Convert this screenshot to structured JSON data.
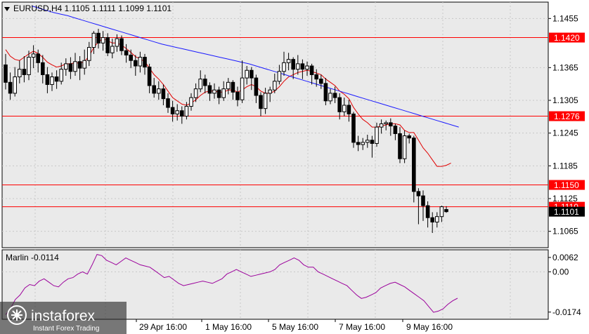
{
  "header": {
    "symbol_info": "EURUSD,H4  1.1105 1.1111 1.1099 1.1101"
  },
  "indicator": {
    "name": "Marlin -0.0114"
  },
  "price_axis": {
    "ticks": [
      "1.1455",
      "1.1365",
      "1.1305",
      "1.1245",
      "1.1185",
      "1.1125",
      "1.1065"
    ]
  },
  "price_tags": [
    {
      "text": "1.1420",
      "value": 1.142,
      "color": "#ff0000"
    },
    {
      "text": "1.1276",
      "value": 1.1276,
      "color": "#ff0000"
    },
    {
      "text": "1.1150",
      "value": 1.115,
      "color": "#ff0000"
    },
    {
      "text": "1.1110",
      "value": 1.111,
      "color": "#ff0000"
    },
    {
      "text": "1.1101",
      "value": 1.1101,
      "color": "#000000"
    }
  ],
  "indicator_axis": {
    "ticks": [
      "0.0062",
      "0.00",
      "-0.0174"
    ]
  },
  "time_axis": {
    "labels": [
      "29 Apr 16:00",
      "1 May 16:00",
      "5 May 16:00",
      "7 May 16:00",
      "9 May 16:00"
    ]
  },
  "watermark": {
    "brand": "instaforex",
    "tagline": "Instant Forex Trading"
  },
  "colors": {
    "background": "#ffffff",
    "plot_bg": "#eaeaea",
    "grid": "#c8c8c8",
    "resistance": "#ff0000",
    "fast_ma": "#e00000",
    "slow_ma": "#1a1aff",
    "oscillator": "#9b009b",
    "candle": "#000000"
  },
  "chart_data": {
    "type": "candlestick",
    "symbol": "EURUSD",
    "timeframe": "H4",
    "ohlc_last": {
      "open": 1.1105,
      "high": 1.1111,
      "low": 1.1099,
      "close": 1.1101
    },
    "ylim": [
      1.1035,
      1.1485
    ],
    "horizontal_levels": [
      1.142,
      1.1276,
      1.115,
      1.111
    ],
    "candles": [
      [
        1.137,
        1.1338,
        1.139,
        1.1325
      ],
      [
        1.1338,
        1.1318,
        1.1356,
        1.1306
      ],
      [
        1.1318,
        1.1348,
        1.1366,
        1.1312
      ],
      [
        1.1348,
        1.1362,
        1.1378,
        1.1336
      ],
      [
        1.1362,
        1.1352,
        1.1386,
        1.1338
      ],
      [
        1.1352,
        1.1384,
        1.1396,
        1.1342
      ],
      [
        1.1384,
        1.139,
        1.1406,
        1.1364
      ],
      [
        1.139,
        1.1374,
        1.1398,
        1.1356
      ],
      [
        1.1374,
        1.1352,
        1.1388,
        1.1336
      ],
      [
        1.1352,
        1.1334,
        1.1366,
        1.1318
      ],
      [
        1.1334,
        1.1348,
        1.1356,
        1.1322
      ],
      [
        1.1348,
        1.134,
        1.136,
        1.1326
      ],
      [
        1.134,
        1.1362,
        1.1374,
        1.1334
      ],
      [
        1.1362,
        1.1372,
        1.1382,
        1.135
      ],
      [
        1.1372,
        1.1358,
        1.1384,
        1.1344
      ],
      [
        1.1358,
        1.1376,
        1.1392,
        1.135
      ],
      [
        1.1376,
        1.1364,
        1.1386,
        1.1342
      ],
      [
        1.1364,
        1.1378,
        1.1398,
        1.1352
      ],
      [
        1.1378,
        1.1402,
        1.1412,
        1.1368
      ],
      [
        1.1402,
        1.1428,
        1.1432,
        1.139
      ],
      [
        1.1428,
        1.141,
        1.1436,
        1.14
      ],
      [
        1.141,
        1.142,
        1.1432,
        1.1396
      ],
      [
        1.142,
        1.1392,
        1.1428,
        1.1386
      ],
      [
        1.1392,
        1.1404,
        1.1418,
        1.1382
      ],
      [
        1.1404,
        1.1418,
        1.1426,
        1.1394
      ],
      [
        1.1418,
        1.1396,
        1.1424,
        1.1388
      ],
      [
        1.1396,
        1.1388,
        1.1408,
        1.1374
      ],
      [
        1.1388,
        1.1378,
        1.1398,
        1.1364
      ],
      [
        1.1378,
        1.1368,
        1.1388,
        1.135
      ],
      [
        1.1368,
        1.1384,
        1.1394,
        1.1356
      ],
      [
        1.1384,
        1.1366,
        1.139,
        1.1352
      ],
      [
        1.1366,
        1.1332,
        1.1372,
        1.1318
      ],
      [
        1.1332,
        1.1318,
        1.1346,
        1.131
      ],
      [
        1.1318,
        1.1326,
        1.134,
        1.1306
      ],
      [
        1.1326,
        1.1308,
        1.1334,
        1.1296
      ],
      [
        1.1308,
        1.1292,
        1.1318,
        1.1282
      ],
      [
        1.1292,
        1.128,
        1.1304,
        1.1266
      ],
      [
        1.128,
        1.1286,
        1.1298,
        1.1268
      ],
      [
        1.1286,
        1.1276,
        1.1294,
        1.1262
      ],
      [
        1.1276,
        1.1294,
        1.1302,
        1.127
      ],
      [
        1.1294,
        1.131,
        1.1318,
        1.1286
      ],
      [
        1.131,
        1.1326,
        1.1336,
        1.1302
      ],
      [
        1.1326,
        1.1344,
        1.136,
        1.132
      ],
      [
        1.1344,
        1.1332,
        1.1352,
        1.1318
      ],
      [
        1.1332,
        1.1318,
        1.1338,
        1.1304
      ],
      [
        1.1318,
        1.1324,
        1.1336,
        1.1308
      ],
      [
        1.1324,
        1.131,
        1.133,
        1.1298
      ],
      [
        1.131,
        1.1326,
        1.134,
        1.1304
      ],
      [
        1.1326,
        1.1338,
        1.1346,
        1.1316
      ],
      [
        1.1338,
        1.132,
        1.1342,
        1.1306
      ],
      [
        1.132,
        1.1306,
        1.133,
        1.1294
      ],
      [
        1.1306,
        1.1346,
        1.1378,
        1.13
      ],
      [
        1.1346,
        1.136,
        1.1368,
        1.1334
      ],
      [
        1.136,
        1.1346,
        1.1366,
        1.1324
      ],
      [
        1.1346,
        1.1314,
        1.1352,
        1.13
      ],
      [
        1.1314,
        1.129,
        1.132,
        1.1276
      ],
      [
        1.129,
        1.1318,
        1.1328,
        1.128
      ],
      [
        1.1318,
        1.1324,
        1.133,
        1.1302
      ],
      [
        1.1324,
        1.134,
        1.1354,
        1.1318
      ],
      [
        1.134,
        1.1358,
        1.137,
        1.1334
      ],
      [
        1.1358,
        1.1374,
        1.1394,
        1.135
      ],
      [
        1.1374,
        1.138,
        1.1392,
        1.136
      ],
      [
        1.138,
        1.1362,
        1.1384,
        1.1344
      ],
      [
        1.1362,
        1.1372,
        1.1388,
        1.1352
      ],
      [
        1.1372,
        1.1362,
        1.138,
        1.1344
      ],
      [
        1.1362,
        1.1368,
        1.1376,
        1.135
      ],
      [
        1.1368,
        1.1352,
        1.1372,
        1.1334
      ],
      [
        1.1352,
        1.1344,
        1.1362,
        1.133
      ],
      [
        1.1344,
        1.1336,
        1.1352,
        1.1326
      ],
      [
        1.1336,
        1.1304,
        1.1346,
        1.1296
      ],
      [
        1.1304,
        1.1318,
        1.1326,
        1.1298
      ],
      [
        1.1318,
        1.131,
        1.133,
        1.13
      ],
      [
        1.131,
        1.1284,
        1.1318,
        1.127
      ],
      [
        1.1284,
        1.1296,
        1.131,
        1.1276
      ],
      [
        1.1296,
        1.128,
        1.1306,
        1.1266
      ],
      [
        1.128,
        1.1228,
        1.1284,
        1.1218
      ],
      [
        1.1228,
        1.1224,
        1.124,
        1.1212
      ],
      [
        1.1224,
        1.1228,
        1.1236,
        1.1214
      ],
      [
        1.1228,
        1.1232,
        1.1242,
        1.1218
      ],
      [
        1.1232,
        1.1226,
        1.124,
        1.12
      ],
      [
        1.1226,
        1.1256,
        1.1264,
        1.122
      ],
      [
        1.1256,
        1.1262,
        1.127,
        1.1244
      ],
      [
        1.1262,
        1.1264,
        1.1268,
        1.125
      ],
      [
        1.1264,
        1.1258,
        1.1272,
        1.124
      ],
      [
        1.1258,
        1.1244,
        1.1262,
        1.1232
      ],
      [
        1.1244,
        1.1198,
        1.1256,
        1.119
      ],
      [
        1.1198,
        1.124,
        1.125,
        1.119
      ],
      [
        1.124,
        1.1236,
        1.1244,
        1.1226
      ],
      [
        1.1236,
        1.1138,
        1.124,
        1.1118
      ],
      [
        1.1138,
        1.113,
        1.1144,
        1.1078
      ],
      [
        1.113,
        1.1112,
        1.114,
        1.1084
      ],
      [
        1.1112,
        1.109,
        1.112,
        1.1072
      ],
      [
        1.109,
        1.1082,
        1.11,
        1.1062
      ],
      [
        1.1082,
        1.1092,
        1.11,
        1.1072
      ],
      [
        1.1092,
        1.111,
        1.1112,
        1.1082
      ],
      [
        1.1105,
        1.1101,
        1.1111,
        1.1099
      ]
    ],
    "fast_ma": [
      1.1398,
      1.1386,
      1.138,
      1.1378,
      1.1384,
      1.139,
      1.1395,
      1.1391,
      1.1384,
      1.1375,
      1.137,
      1.1366,
      1.1368,
      1.1372,
      1.1372,
      1.1374,
      1.1373,
      1.1376,
      1.1386,
      1.1402,
      1.1412,
      1.1418,
      1.1414,
      1.141,
      1.141,
      1.1406,
      1.14,
      1.1393,
      1.1385,
      1.1381,
      1.1376,
      1.1364,
      1.1352,
      1.1344,
      1.1334,
      1.1322,
      1.131,
      1.1304,
      1.1298,
      1.1296,
      1.13,
      1.1306,
      1.1314,
      1.132,
      1.1322,
      1.1322,
      1.132,
      1.132,
      1.1324,
      1.1324,
      1.132,
      1.1324,
      1.133,
      1.1334,
      1.133,
      1.1322,
      1.1318,
      1.1318,
      1.1322,
      1.133,
      1.134,
      1.1348,
      1.1352,
      1.1356,
      1.1358,
      1.136,
      1.1358,
      1.1355,
      1.1352,
      1.1344,
      1.1338,
      1.1332,
      1.1322,
      1.1316,
      1.1308,
      1.1292,
      1.128,
      1.127,
      1.1264,
      1.1256,
      1.1256,
      1.1258,
      1.126,
      1.1262,
      1.1262,
      1.126,
      1.125,
      1.1246,
      1.1246,
      1.1232,
      1.1218,
      1.1208,
      1.1196,
      1.1184,
      1.1184,
      1.1186,
      1.119
    ],
    "slow_ma": [
      1.1478,
      1.1474,
      1.147,
      1.1466,
      1.1463,
      1.146,
      1.1456,
      1.1452,
      1.1448,
      1.1444,
      1.144,
      1.1436,
      1.1432,
      1.1428,
      1.1424,
      1.142,
      1.1416,
      1.1412,
      1.1408,
      1.1405,
      1.1402,
      1.1399,
      1.1396,
      1.1393,
      1.139,
      1.1387,
      1.1384,
      1.1381,
      1.1378,
      1.1375,
      1.1372,
      1.1368,
      1.1364,
      1.136,
      1.1356,
      1.1352,
      1.1348,
      1.1344,
      1.134,
      1.1336,
      1.1332,
      1.1328,
      1.1324,
      1.132,
      1.1316,
      1.1312,
      1.1308,
      1.1304,
      1.13,
      1.1296,
      1.1292,
      1.1288,
      1.1284,
      1.128,
      1.1276,
      1.1272,
      1.1268,
      1.1264,
      1.126,
      1.1256
    ],
    "oscillator": {
      "name": "Marlin",
      "last": -0.0114,
      "ylim": [
        -0.0205,
        0.0095
      ],
      "values": [
        -0.0185,
        -0.016,
        -0.012,
        -0.01,
        -0.007,
        -0.0055,
        -0.006,
        -0.004,
        -0.003,
        -0.0045,
        -0.006,
        -0.0065,
        -0.0045,
        -0.003,
        -0.0025,
        -0.001,
        0.0,
        -0.001,
        0.003,
        0.0075,
        0.007,
        0.005,
        0.004,
        0.003,
        0.0045,
        0.006,
        0.005,
        0.004,
        0.003,
        0.0025,
        0.002,
        0.0005,
        -0.001,
        -0.0025,
        -0.002,
        -0.0035,
        -0.005,
        -0.006,
        -0.0055,
        -0.005,
        -0.0045,
        -0.004,
        -0.0045,
        -0.005,
        -0.004,
        -0.003,
        -0.001,
        0.0,
        0.001,
        0.0,
        -0.001,
        -0.002,
        -0.0015,
        -0.001,
        -0.0005,
        0.0,
        0.001,
        0.003,
        0.004,
        0.005,
        0.006,
        0.005,
        0.003,
        0.002,
        0.002,
        0.0,
        -0.001,
        -0.002,
        -0.003,
        -0.004,
        -0.005,
        -0.006,
        -0.008,
        -0.01,
        -0.0115,
        -0.011,
        -0.01,
        -0.009,
        -0.007,
        -0.006,
        -0.005,
        -0.0045,
        -0.0055,
        -0.0065,
        -0.008,
        -0.0095,
        -0.011,
        -0.0125,
        -0.015,
        -0.0175,
        -0.017,
        -0.016,
        -0.014,
        -0.0125,
        -0.0114
      ]
    }
  }
}
